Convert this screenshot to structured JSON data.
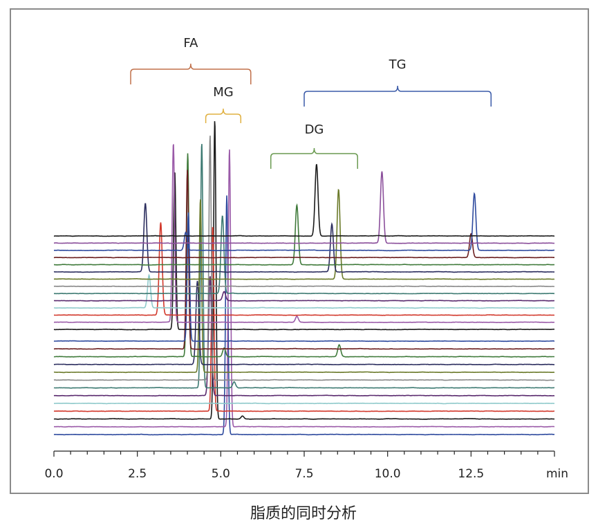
{
  "caption": "脂质的同时分析",
  "chart_data": {
    "type": "line",
    "title": "脂质的同时分析",
    "xlabel": "min",
    "ylabel": "",
    "xlim": [
      0,
      15
    ],
    "x_ticks": [
      {
        "value": 0,
        "label": "0.0"
      },
      {
        "value": 2.5,
        "label": "2.5"
      },
      {
        "value": 5,
        "label": "5.0"
      },
      {
        "value": 7.5,
        "label": "7.5"
      },
      {
        "value": 10,
        "label": "10.0"
      },
      {
        "value": 12.5,
        "label": "12.5"
      }
    ],
    "x_unit_label": "min",
    "minor_tick_step": 0.5,
    "intensity_unit": "relative % (stacked, offset chromatograms)",
    "groups": [
      {
        "label": "FA",
        "range": [
          2.3,
          5.9
        ],
        "color": "#c0704a"
      },
      {
        "label": "MG",
        "range": [
          4.55,
          5.6
        ],
        "color": "#e0b040"
      },
      {
        "label": "DG",
        "range": [
          6.5,
          9.1
        ],
        "color": "#6a9a50"
      },
      {
        "label": "TG",
        "range": [
          7.5,
          13.1
        ],
        "color": "#3a5aa8"
      }
    ],
    "series": [
      {
        "color": "#1a1a1a",
        "peaks": [
          [
            7.87,
            24
          ]
        ]
      },
      {
        "color": "#8b4f9b",
        "peaks": [
          [
            9.83,
            24
          ]
        ]
      },
      {
        "color": "#2e4a9e",
        "peaks": [
          [
            3.95,
            6
          ],
          [
            12.6,
            19
          ]
        ]
      },
      {
        "color": "#6b1f1f",
        "peaks": [
          [
            12.5,
            8
          ]
        ]
      },
      {
        "color": "#3f7a3a",
        "peaks": [
          [
            7.28,
            20
          ]
        ]
      },
      {
        "color": "#2b2d5e",
        "peaks": [
          [
            2.74,
            23
          ],
          [
            8.33,
            16
          ]
        ]
      },
      {
        "color": "#6b7a2a",
        "peaks": [
          [
            8.53,
            30
          ]
        ]
      },
      {
        "color": "#888888",
        "peaks": []
      },
      {
        "color": "#3d7a72",
        "peaks": [
          [
            5.05,
            26
          ]
        ]
      },
      {
        "color": "#5a2a6e",
        "peaks": [
          [
            5.1,
            3
          ]
        ]
      },
      {
        "color": "#8fcacb",
        "peaks": [
          [
            2.85,
            11
          ]
        ]
      },
      {
        "color": "#d2382b",
        "peaks": [
          [
            3.2,
            31
          ]
        ]
      },
      {
        "color": "#9a5aa8",
        "peaks": [
          [
            3.58,
            60
          ],
          [
            7.28,
            2
          ]
        ]
      },
      {
        "color": "#1a1a1a",
        "peaks": [
          [
            3.62,
            53
          ]
        ]
      },
      {
        "color": "#2e4a9e",
        "peaks": [
          [
            4.03,
            43
          ]
        ]
      },
      {
        "color": "#6b1f1f",
        "peaks": [
          [
            4.0,
            60
          ]
        ]
      },
      {
        "color": "#3f7a3a",
        "peaks": [
          [
            4.01,
            68
          ],
          [
            5.1,
            3
          ],
          [
            8.55,
            4
          ]
        ]
      },
      {
        "color": "#2b2d5e",
        "peaks": [
          [
            4.3,
            28
          ]
        ]
      },
      {
        "color": "#6b7a2a",
        "peaks": [
          [
            4.39,
            58
          ]
        ]
      },
      {
        "color": "#888888",
        "peaks": [
          [
            4.68,
            82
          ]
        ]
      },
      {
        "color": "#3d7a72",
        "peaks": [
          [
            4.43,
            82
          ],
          [
            5.4,
            2
          ]
        ]
      },
      {
        "color": "#5a2a6e",
        "peaks": [
          [
            4.68,
            40
          ]
        ]
      },
      {
        "color": "#8fcacb",
        "peaks": []
      },
      {
        "color": "#d2382b",
        "peaks": [
          [
            4.76,
            62
          ]
        ]
      },
      {
        "color": "#1a1a1a",
        "peaks": [
          [
            4.82,
            100
          ],
          [
            5.65,
            1
          ]
        ]
      },
      {
        "color": "#9a5aa8",
        "peaks": [
          [
            5.26,
            93
          ]
        ]
      },
      {
        "color": "#2e4a9e",
        "peaks": [
          [
            5.18,
            80
          ]
        ]
      }
    ]
  }
}
